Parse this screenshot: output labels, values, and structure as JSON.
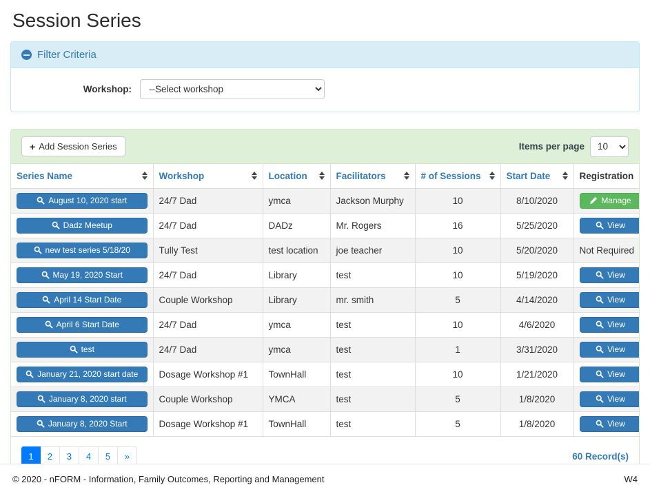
{
  "page": {
    "title": "Session Series",
    "footer": {
      "copyright": "© 2020 - nFORM - Information, Family Outcomes, Reporting and Management",
      "version": "W4"
    }
  },
  "filter": {
    "title": "Filter Criteria",
    "workshop_label": "Workshop:",
    "workshop_selected_option": "--Select workshop"
  },
  "toolbar": {
    "add_button_label": "Add Session Series",
    "items_per_page_label": "Items per page",
    "items_per_page_value": "10"
  },
  "table": {
    "columns": [
      {
        "label": "Series Name",
        "sortable": true
      },
      {
        "label": "Workshop",
        "sortable": true
      },
      {
        "label": "Location",
        "sortable": true
      },
      {
        "label": "Facilitators",
        "sortable": true
      },
      {
        "label": "# of Sessions",
        "sortable": true
      },
      {
        "label": "Start Date",
        "sortable": true
      },
      {
        "label": "Registration",
        "sortable": false
      }
    ],
    "rows": [
      {
        "series_name": "August 10, 2020 start",
        "workshop": "24/7 Dad",
        "location": "ymca",
        "facilitators": "Jackson Murphy",
        "sessions": "10",
        "start_date": "8/10/2020",
        "registration": {
          "type": "manage",
          "label": "Manage"
        }
      },
      {
        "series_name": "Dadz Meetup",
        "workshop": "24/7 Dad",
        "location": "DADz",
        "facilitators": "Mr. Rogers",
        "sessions": "16",
        "start_date": "5/25/2020",
        "registration": {
          "type": "view",
          "label": "View"
        }
      },
      {
        "series_name": "new test series 5/18/20",
        "workshop": "Tully Test",
        "location": "test location",
        "facilitators": "joe teacher",
        "sessions": "10",
        "start_date": "5/20/2020",
        "registration": {
          "type": "text",
          "label": "Not Required"
        }
      },
      {
        "series_name": "May 19, 2020 Start",
        "workshop": "24/7 Dad",
        "location": "Library",
        "facilitators": "test",
        "sessions": "10",
        "start_date": "5/19/2020",
        "registration": {
          "type": "view",
          "label": "View"
        }
      },
      {
        "series_name": "April 14 Start Date",
        "workshop": "Couple Workshop",
        "location": "Library",
        "facilitators": "mr. smith",
        "sessions": "5",
        "start_date": "4/14/2020",
        "registration": {
          "type": "view",
          "label": "View"
        }
      },
      {
        "series_name": "April 6 Start Date",
        "workshop": "24/7 Dad",
        "location": "ymca",
        "facilitators": "test",
        "sessions": "10",
        "start_date": "4/6/2020",
        "registration": {
          "type": "view",
          "label": "View"
        }
      },
      {
        "series_name": "test",
        "workshop": "24/7 Dad",
        "location": "ymca",
        "facilitators": "test",
        "sessions": "1",
        "start_date": "3/31/2020",
        "registration": {
          "type": "view",
          "label": "View"
        }
      },
      {
        "series_name": "January 21, 2020 start date",
        "workshop": "Dosage Workshop #1",
        "location": "TownHall",
        "facilitators": "test",
        "sessions": "10",
        "start_date": "1/21/2020",
        "registration": {
          "type": "view",
          "label": "View"
        }
      },
      {
        "series_name": "January 8, 2020 start",
        "workshop": "Couple Workshop",
        "location": "YMCA",
        "facilitators": "test",
        "sessions": "5",
        "start_date": "1/8/2020",
        "registration": {
          "type": "view",
          "label": "View"
        }
      },
      {
        "series_name": "January 8, 2020 Start",
        "workshop": "Dosage Workshop #1",
        "location": "TownHall",
        "facilitators": "test",
        "sessions": "5",
        "start_date": "1/8/2020",
        "registration": {
          "type": "view",
          "label": "View"
        }
      }
    ]
  },
  "pagination": {
    "pages": [
      "1",
      "2",
      "3",
      "4",
      "5",
      "»"
    ],
    "active_page": "1",
    "records_label": "60 Record(s)"
  },
  "colors": {
    "accent_blue": "#337ab7",
    "accent_blue_border": "#2e6da4",
    "success_green": "#5cb85c",
    "success_green_border": "#4cae4c",
    "info_panel_bg": "#d9edf7",
    "info_panel_border": "#bce8f1",
    "success_panel_bg": "#dff0d8",
    "success_panel_border": "#d6e9c6",
    "pagination_active": "#007bff",
    "row_stripe": "#f2f2f2",
    "table_border": "#dddddd"
  }
}
